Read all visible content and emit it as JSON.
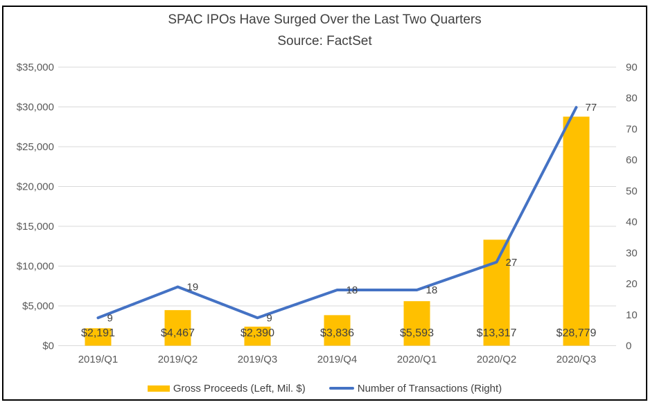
{
  "title": "SPAC IPOs Have Surged Over the Last Two Quarters",
  "subtitle": "Source: FactSet",
  "colors": {
    "bar": "#FFC000",
    "line": "#4472C4",
    "gridline": "#D9D9D9",
    "axis_text": "#595959",
    "data_label_text": "#404040",
    "title_text": "#404040",
    "frame_border": "#000000",
    "background": "#FFFFFF"
  },
  "chart_data": {
    "type": "bar+line",
    "title": "SPAC IPOs Have Surged Over the Last Two Quarters",
    "subtitle": "Source: FactSet",
    "categories": [
      "2019/Q1",
      "2019/Q2",
      "2019/Q3",
      "2019/Q4",
      "2020/Q1",
      "2020/Q2",
      "2020/Q3"
    ],
    "series": [
      {
        "name": "Gross Proceeds (Left, Mil. $)",
        "type": "bar",
        "axis": "left",
        "color": "#FFC000",
        "values": [
          2191,
          4467,
          2390,
          3836,
          5593,
          13317,
          28779
        ],
        "data_labels": [
          "$2,191",
          "$4,467",
          "$2,390",
          "$3,836",
          "$5,593",
          "$13,317",
          "$28,779"
        ]
      },
      {
        "name": "Number of Transactions (Right)",
        "type": "line",
        "axis": "right",
        "color": "#4472C4",
        "values": [
          9,
          19,
          9,
          18,
          18,
          27,
          77
        ],
        "data_labels": [
          "9",
          "19",
          "9",
          "18",
          "18",
          "27",
          "77"
        ]
      }
    ],
    "left_axis": {
      "min": 0,
      "max": 35000,
      "step": 5000,
      "tick_labels": [
        "$0",
        "$5,000",
        "$10,000",
        "$15,000",
        "$20,000",
        "$25,000",
        "$30,000",
        "$35,000"
      ]
    },
    "right_axis": {
      "min": 0,
      "max": 90,
      "step": 10,
      "tick_labels": [
        "0",
        "10",
        "20",
        "30",
        "40",
        "50",
        "60",
        "70",
        "80",
        "90"
      ]
    },
    "grid": true,
    "legend_position": "bottom"
  },
  "legend": {
    "items": [
      {
        "label": "Gross Proceeds (Left, Mil. $)",
        "swatch": "bar",
        "swatch_color": "#FFC000"
      },
      {
        "label": "Number of Transactions (Right)",
        "swatch": "line",
        "swatch_color": "#4472C4"
      }
    ]
  }
}
